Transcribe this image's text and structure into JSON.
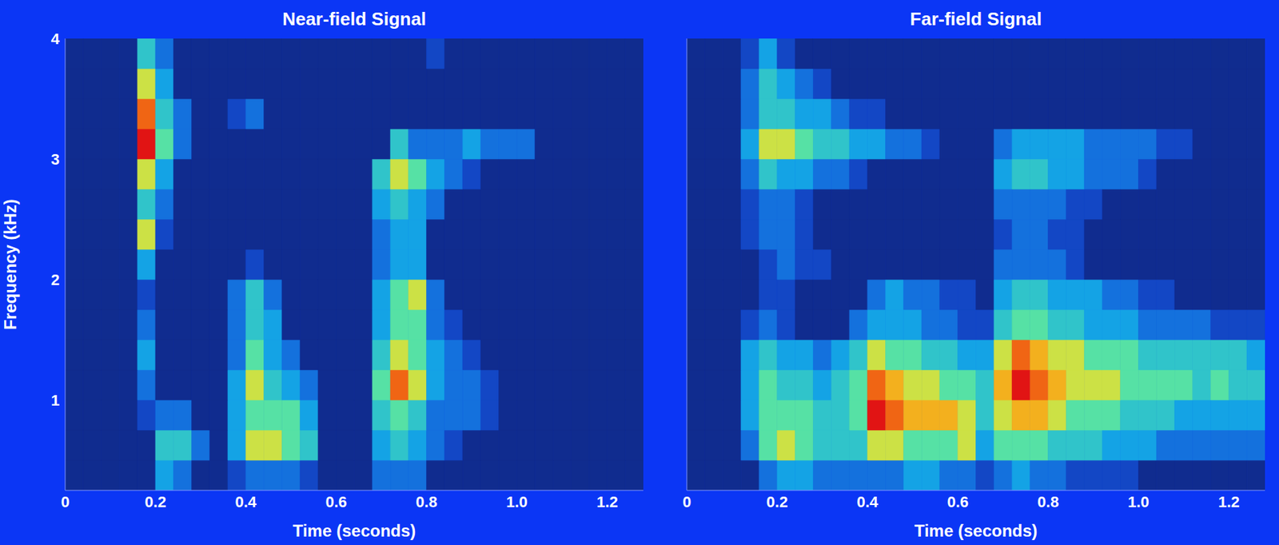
{
  "chart_data": [
    {
      "type": "heatmap",
      "title": "Near-field Signal",
      "x_label": "Time (seconds)",
      "y_label": "Frequency (kHz)",
      "xlim": [
        0,
        1.28
      ],
      "xticks": [
        0,
        0.2,
        0.4,
        0.6,
        0.8,
        {
          "value": 1,
          "label": "1.0"
        },
        1.2
      ],
      "ylim": [
        0.25,
        4
      ],
      "yticks": [
        1,
        2,
        3,
        4
      ],
      "x_bins": [
        0,
        0.04,
        0.08,
        0.12,
        0.16,
        0.2,
        0.24,
        0.28,
        0.32,
        0.36,
        0.4,
        0.44,
        0.48,
        0.52,
        0.56,
        0.6,
        0.64,
        0.68,
        0.72,
        0.76,
        0.8,
        0.84,
        0.88,
        0.92,
        0.96,
        1,
        1.04,
        1.08,
        1.12,
        1.16,
        1.2,
        1.24,
        1.28
      ],
      "y_bins": [
        0.25,
        0.5,
        0.75,
        1,
        1.25,
        1.5,
        1.75,
        2,
        2.25,
        2.5,
        2.75,
        3,
        3.25,
        3.5,
        3.75,
        4
      ],
      "color_range": [
        0,
        9
      ],
      "cells": [
        [
          0,
          0,
          0,
          0,
          0,
          3,
          2,
          0,
          0,
          1,
          2,
          2,
          2,
          1,
          0,
          0,
          0,
          2,
          2,
          2,
          0,
          0,
          0,
          0,
          0,
          0,
          0,
          0,
          0,
          0,
          0,
          0
        ],
        [
          0,
          0,
          0,
          0,
          0,
          4,
          4,
          2,
          0,
          3,
          6,
          6,
          5,
          4,
          0,
          0,
          0,
          3,
          4,
          3,
          2,
          1,
          0,
          0,
          0,
          0,
          0,
          0,
          0,
          0,
          0,
          0
        ],
        [
          0,
          0,
          0,
          0,
          1,
          2,
          2,
          0,
          0,
          3,
          5,
          5,
          5,
          3,
          0,
          0,
          0,
          4,
          5,
          4,
          2,
          2,
          2,
          1,
          0,
          0,
          0,
          0,
          0,
          0,
          0,
          0
        ],
        [
          0,
          0,
          0,
          0,
          2,
          0,
          0,
          0,
          0,
          3,
          6,
          4,
          3,
          2,
          0,
          0,
          0,
          5,
          8,
          6,
          3,
          2,
          2,
          1,
          0,
          0,
          0,
          0,
          0,
          0,
          0,
          0
        ],
        [
          0,
          0,
          0,
          0,
          3,
          0,
          0,
          0,
          0,
          2,
          5,
          3,
          2,
          0,
          0,
          0,
          0,
          4,
          6,
          5,
          3,
          2,
          1,
          0,
          0,
          0,
          0,
          0,
          0,
          0,
          0,
          0
        ],
        [
          0,
          0,
          0,
          0,
          2,
          0,
          0,
          0,
          0,
          2,
          4,
          3,
          0,
          0,
          0,
          0,
          0,
          3,
          5,
          5,
          2,
          1,
          0,
          0,
          0,
          0,
          0,
          0,
          0,
          0,
          0,
          0
        ],
        [
          0,
          0,
          0,
          0,
          1,
          0,
          0,
          0,
          0,
          2,
          4,
          2,
          0,
          0,
          0,
          0,
          0,
          3,
          5,
          6,
          2,
          0,
          0,
          0,
          0,
          0,
          0,
          0,
          0,
          0,
          0,
          0
        ],
        [
          0,
          0,
          0,
          0,
          3,
          0,
          0,
          0,
          0,
          0,
          1,
          0,
          0,
          0,
          0,
          0,
          0,
          2,
          3,
          3,
          0,
          0,
          0,
          0,
          0,
          0,
          0,
          0,
          0,
          0,
          0,
          0
        ],
        [
          0,
          0,
          0,
          0,
          6,
          1,
          0,
          0,
          0,
          0,
          0,
          0,
          0,
          0,
          0,
          0,
          0,
          2,
          3,
          3,
          0,
          0,
          0,
          0,
          0,
          0,
          0,
          0,
          0,
          0,
          0,
          0
        ],
        [
          0,
          0,
          0,
          0,
          4,
          2,
          0,
          0,
          0,
          0,
          0,
          0,
          0,
          0,
          0,
          0,
          0,
          3,
          4,
          3,
          2,
          0,
          0,
          0,
          0,
          0,
          0,
          0,
          0,
          0,
          0,
          0
        ],
        [
          0,
          0,
          0,
          0,
          6,
          3,
          0,
          0,
          0,
          0,
          0,
          0,
          0,
          0,
          0,
          0,
          0,
          4,
          6,
          5,
          3,
          2,
          1,
          0,
          0,
          0,
          0,
          0,
          0,
          0,
          0,
          0
        ],
        [
          0,
          0,
          0,
          0,
          9,
          5,
          2,
          0,
          0,
          0,
          0,
          0,
          0,
          0,
          0,
          0,
          0,
          0,
          4,
          2,
          2,
          2,
          3,
          2,
          2,
          2,
          0,
          0,
          0,
          0,
          0,
          0
        ],
        [
          0,
          0,
          0,
          0,
          8,
          4,
          2,
          0,
          0,
          1,
          2,
          0,
          0,
          0,
          0,
          0,
          0,
          0,
          0,
          0,
          0,
          0,
          0,
          0,
          0,
          0,
          0,
          0,
          0,
          0,
          0,
          0
        ],
        [
          0,
          0,
          0,
          0,
          6,
          3,
          0,
          0,
          0,
          0,
          0,
          0,
          0,
          0,
          0,
          0,
          0,
          0,
          0,
          0,
          0,
          0,
          0,
          0,
          0,
          0,
          0,
          0,
          0,
          0,
          0,
          0
        ],
        [
          0,
          0,
          0,
          0,
          4,
          2,
          0,
          0,
          0,
          0,
          0,
          0,
          0,
          0,
          0,
          0,
          0,
          0,
          0,
          0,
          1,
          0,
          0,
          0,
          0,
          0,
          0,
          0,
          0,
          0,
          0,
          0
        ]
      ]
    },
    {
      "type": "heatmap",
      "title": "Far-field Signal",
      "x_label": "Time (seconds)",
      "tick_labels": "x",
      "xlim": [
        0,
        1.28
      ],
      "xticks": [
        0,
        0.2,
        0.4,
        0.6,
        0.8,
        {
          "value": 1,
          "label": "1.0"
        },
        1.2
      ],
      "ylim": [
        0.25,
        4
      ],
      "x_bins": [
        0,
        0.04,
        0.08,
        0.12,
        0.16,
        0.2,
        0.24,
        0.28,
        0.32,
        0.36,
        0.4,
        0.44,
        0.48,
        0.52,
        0.56,
        0.6,
        0.64,
        0.68,
        0.72,
        0.76,
        0.8,
        0.84,
        0.88,
        0.92,
        0.96,
        1,
        1.04,
        1.08,
        1.12,
        1.16,
        1.2,
        1.24,
        1.28
      ],
      "y_bins": [
        0.25,
        0.5,
        0.75,
        1,
        1.25,
        1.5,
        1.75,
        2,
        2.25,
        2.5,
        2.75,
        3,
        3.25,
        3.5,
        3.75,
        4
      ],
      "color_range": [
        0,
        9
      ],
      "cells": [
        [
          0,
          0,
          0,
          0,
          2,
          3,
          3,
          2,
          2,
          2,
          2,
          2,
          3,
          3,
          2,
          2,
          1,
          2,
          3,
          2,
          2,
          1,
          1,
          1,
          1,
          0,
          0,
          0,
          0,
          0,
          0,
          0
        ],
        [
          0,
          0,
          0,
          2,
          5,
          6,
          5,
          4,
          4,
          4,
          6,
          6,
          5,
          5,
          5,
          6,
          3,
          5,
          5,
          5,
          4,
          4,
          4,
          3,
          3,
          3,
          2,
          2,
          2,
          2,
          2,
          2
        ],
        [
          0,
          0,
          0,
          3,
          5,
          5,
          5,
          4,
          4,
          5,
          9,
          8,
          7,
          7,
          7,
          6,
          4,
          6,
          7,
          7,
          6,
          5,
          5,
          5,
          4,
          4,
          4,
          3,
          3,
          3,
          3,
          3
        ],
        [
          0,
          0,
          0,
          3,
          5,
          4,
          4,
          3,
          4,
          5,
          8,
          7,
          6,
          6,
          5,
          5,
          4,
          7,
          9,
          8,
          7,
          6,
          6,
          6,
          5,
          5,
          5,
          5,
          4,
          5,
          4,
          4
        ],
        [
          0,
          0,
          0,
          3,
          4,
          3,
          3,
          2,
          3,
          4,
          6,
          5,
          5,
          4,
          4,
          3,
          3,
          6,
          8,
          7,
          6,
          6,
          5,
          5,
          5,
          4,
          4,
          4,
          4,
          4,
          4,
          3
        ],
        [
          0,
          0,
          0,
          1,
          2,
          1,
          0,
          0,
          0,
          2,
          3,
          3,
          3,
          2,
          2,
          1,
          1,
          4,
          5,
          5,
          4,
          4,
          3,
          3,
          3,
          2,
          2,
          2,
          2,
          1,
          1,
          1
        ],
        [
          0,
          0,
          0,
          0,
          1,
          1,
          0,
          0,
          0,
          0,
          2,
          3,
          2,
          2,
          1,
          1,
          0,
          3,
          4,
          4,
          3,
          3,
          3,
          2,
          2,
          1,
          1,
          0,
          0,
          0,
          0,
          0
        ],
        [
          0,
          0,
          0,
          0,
          1,
          2,
          1,
          1,
          0,
          0,
          0,
          0,
          0,
          0,
          0,
          0,
          0,
          2,
          2,
          2,
          2,
          1,
          0,
          0,
          0,
          0,
          0,
          0,
          0,
          0,
          0,
          0
        ],
        [
          0,
          0,
          0,
          1,
          2,
          2,
          1,
          0,
          0,
          0,
          0,
          0,
          0,
          0,
          0,
          0,
          0,
          1,
          2,
          2,
          1,
          1,
          0,
          0,
          0,
          0,
          0,
          0,
          0,
          0,
          0,
          0
        ],
        [
          0,
          0,
          0,
          1,
          2,
          2,
          1,
          0,
          0,
          0,
          0,
          0,
          0,
          0,
          0,
          0,
          0,
          2,
          2,
          2,
          2,
          1,
          1,
          0,
          0,
          0,
          0,
          0,
          0,
          0,
          0,
          0
        ],
        [
          0,
          0,
          0,
          2,
          4,
          3,
          3,
          2,
          2,
          1,
          0,
          0,
          0,
          0,
          0,
          0,
          0,
          3,
          4,
          4,
          3,
          3,
          2,
          2,
          2,
          1,
          0,
          0,
          0,
          0,
          0,
          0
        ],
        [
          0,
          0,
          0,
          3,
          6,
          6,
          5,
          4,
          4,
          3,
          3,
          2,
          2,
          1,
          0,
          0,
          0,
          2,
          3,
          3,
          3,
          3,
          2,
          2,
          2,
          2,
          1,
          1,
          0,
          0,
          0,
          0
        ],
        [
          0,
          0,
          0,
          2,
          4,
          4,
          3,
          3,
          2,
          1,
          1,
          0,
          0,
          0,
          0,
          0,
          0,
          0,
          0,
          0,
          0,
          0,
          0,
          0,
          0,
          0,
          0,
          0,
          0,
          0,
          0,
          0
        ],
        [
          0,
          0,
          0,
          2,
          4,
          3,
          2,
          1,
          0,
          0,
          0,
          0,
          0,
          0,
          0,
          0,
          0,
          0,
          0,
          0,
          0,
          0,
          0,
          0,
          0,
          0,
          0,
          0,
          0,
          0,
          0,
          0
        ],
        [
          0,
          0,
          0,
          1,
          3,
          1,
          0,
          0,
          0,
          0,
          0,
          0,
          0,
          0,
          0,
          0,
          0,
          0,
          0,
          0,
          0,
          0,
          0,
          0,
          0,
          0,
          0,
          0,
          0,
          0,
          0,
          0
        ]
      ]
    }
  ]
}
